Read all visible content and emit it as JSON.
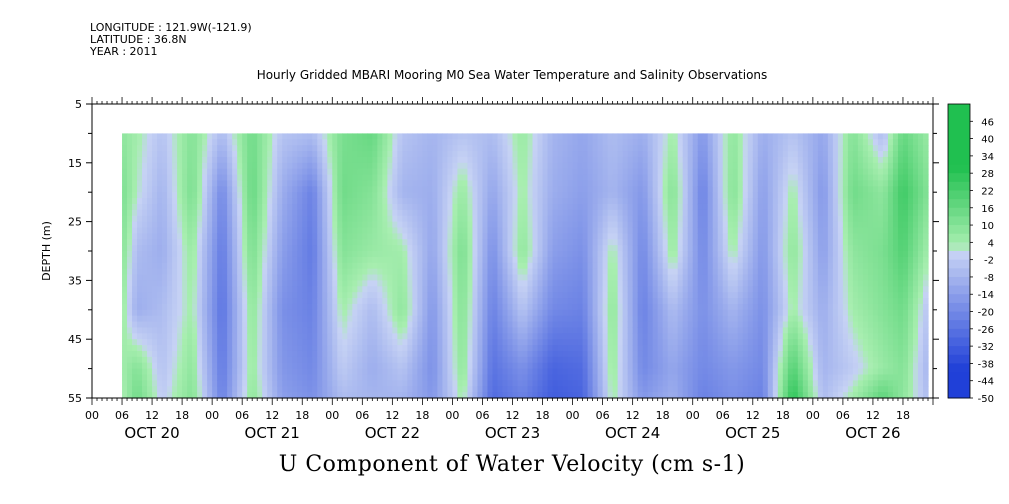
{
  "header": {
    "longitude": "LONGITUDE : 121.9W(-121.9)",
    "latitude": "LATITUDE : 36.8N",
    "year": "YEAR : 2011"
  },
  "chart_data": {
    "type": "heatmap",
    "title": "Hourly Gridded MBARI Mooring M0 Sea Water Temperature and Salinity Observations",
    "xlabel": "U Component of Water Velocity (cm s-1)",
    "ylabel": "DEPTH (m)",
    "ylim": [
      5,
      55
    ],
    "y_reversed": true,
    "y_ticks": [
      "5",
      "15",
      "25",
      "35",
      "45",
      "55"
    ],
    "x_hour_ticks": [
      "00",
      "06",
      "12",
      "18",
      "00",
      "06",
      "12",
      "18",
      "00",
      "06",
      "12",
      "18",
      "00",
      "06",
      "12",
      "18",
      "00",
      "06",
      "12",
      "18",
      "00",
      "06",
      "12",
      "18",
      "00",
      "06",
      "12",
      "18"
    ],
    "x_day_labels": [
      "OCT 20",
      "OCT 21",
      "OCT 22",
      "OCT 23",
      "OCT 24",
      "OCT 25",
      "OCT 26"
    ],
    "time_range_hours": [
      0,
      168
    ],
    "data_time_range_hours": [
      6,
      167
    ],
    "data_depth_range": [
      10,
      55
    ],
    "colorbar_levels": [
      "46",
      "40",
      "34",
      "28",
      "22",
      "16",
      "10",
      "4",
      "-2",
      "-8",
      "-14",
      "-20",
      "-26",
      "-32",
      "-38",
      "-44",
      "-50"
    ],
    "colorbar_min": -50,
    "colorbar_max": 52,
    "colors": {
      "positive": "#3fd070",
      "negative": "#5070e8",
      "zero": "#b8c8f0"
    },
    "sample_depths": [
      10,
      20,
      30,
      40,
      50,
      55
    ],
    "sample_values_cm_s": [
      [
        6,
        [
          8,
          12,
          10,
          6,
          4,
          2
        ]
      ],
      [
        9,
        [
          4,
          2,
          -6,
          -10,
          10,
          14
        ]
      ],
      [
        14,
        [
          -4,
          -8,
          -10,
          -6,
          -4,
          -2
        ]
      ],
      [
        20,
        [
          10,
          12,
          6,
          4,
          8,
          10
        ]
      ],
      [
        26,
        [
          -6,
          -20,
          -24,
          -26,
          -24,
          -22
        ]
      ],
      [
        32,
        [
          14,
          16,
          12,
          8,
          6,
          8
        ]
      ],
      [
        38,
        [
          -4,
          -10,
          -14,
          -18,
          -16,
          -14
        ]
      ],
      [
        44,
        [
          -6,
          -22,
          -24,
          -22,
          -20,
          -18
        ]
      ],
      [
        50,
        [
          12,
          14,
          10,
          4,
          -2,
          -6
        ]
      ],
      [
        56,
        [
          16,
          10,
          6,
          -6,
          -10,
          -8
        ]
      ],
      [
        62,
        [
          -4,
          -8,
          4,
          8,
          -4,
          -8
        ]
      ],
      [
        68,
        [
          -8,
          -10,
          -12,
          -16,
          -18,
          -16
        ]
      ],
      [
        74,
        [
          -4,
          6,
          12,
          10,
          8,
          4
        ]
      ],
      [
        80,
        [
          -6,
          -12,
          -18,
          -22,
          -26,
          -28
        ]
      ],
      [
        86,
        [
          6,
          4,
          8,
          -4,
          -18,
          -22
        ]
      ],
      [
        92,
        [
          -8,
          -10,
          -14,
          -20,
          -30,
          -32
        ]
      ],
      [
        98,
        [
          -12,
          -14,
          -18,
          -22,
          -28,
          -30
        ]
      ],
      [
        104,
        [
          -6,
          -8,
          4,
          8,
          6,
          4
        ]
      ],
      [
        110,
        [
          -10,
          -16,
          -20,
          -22,
          -20,
          -16
        ]
      ],
      [
        116,
        [
          4,
          10,
          6,
          -6,
          -12,
          -10
        ]
      ],
      [
        122,
        [
          -16,
          -22,
          -20,
          -18,
          -20,
          -22
        ]
      ],
      [
        128,
        [
          8,
          10,
          4,
          -8,
          -16,
          -18
        ]
      ],
      [
        134,
        [
          -10,
          -14,
          -16,
          -18,
          -20,
          -22
        ]
      ],
      [
        140,
        [
          -4,
          4,
          8,
          4,
          20,
          28
        ]
      ],
      [
        146,
        [
          -12,
          -16,
          -14,
          -10,
          -8,
          -6
        ]
      ],
      [
        152,
        [
          10,
          14,
          8,
          4,
          -2,
          4
        ]
      ],
      [
        158,
        [
          -6,
          8,
          12,
          10,
          6,
          18
        ]
      ],
      [
        162,
        [
          16,
          24,
          20,
          14,
          10,
          8
        ]
      ],
      [
        167,
        [
          6,
          10,
          4,
          -4,
          -8,
          -6
        ]
      ]
    ]
  }
}
